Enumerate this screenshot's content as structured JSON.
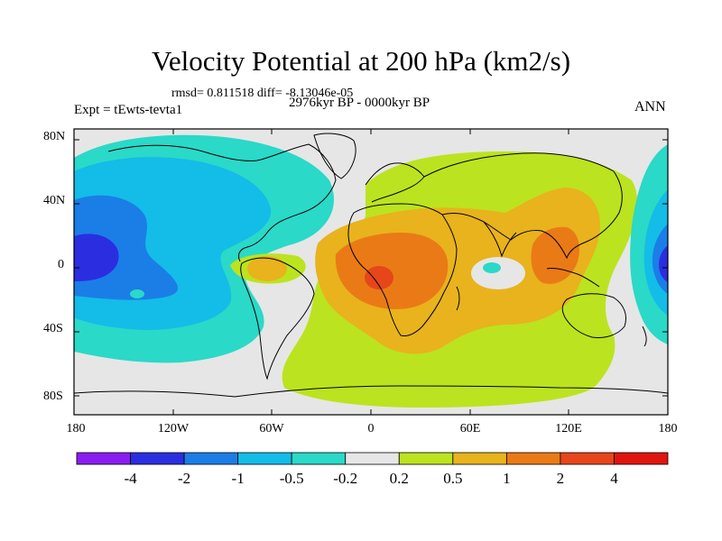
{
  "title": "Velocity Potential at 200 hPa (km2/s)",
  "stats_line": "rmsd= 0.811518 diff= -8.13046e-05",
  "period": "2976kyr BP - 0000kyr BP",
  "experiment": "Expt = tEwts-tevta1",
  "season": "ANN",
  "axes": {
    "y_ticks": [
      "80N",
      "40N",
      "0",
      "40S",
      "80S"
    ],
    "y_tick_values": [
      80,
      40,
      0,
      -40,
      -80
    ],
    "x_ticks": [
      "180",
      "120W",
      "60W",
      "0",
      "60E",
      "120E",
      "180"
    ],
    "x_tick_values": [
      -180,
      -120,
      -60,
      0,
      60,
      120,
      180
    ],
    "lon_range": [
      -180,
      180
    ],
    "lat_range": [
      -90,
      90
    ]
  },
  "colorbar": {
    "labels": [
      "-4",
      "-2",
      "-1",
      "-0.5",
      "-0.2",
      "0.2",
      "0.5",
      "1",
      "2",
      "4"
    ],
    "colors": [
      "#8a1cf0",
      "#2a2ee0",
      "#1a7ee6",
      "#14bce8",
      "#2ad9c8",
      "#e6e6e6",
      "#bce31f",
      "#e8b31c",
      "#ea7a16",
      "#e6461a",
      "#e0150f"
    ]
  },
  "field_colors": {
    "background": "#e6e6e6",
    "cyan": "#2ad9c8",
    "lightblue": "#14bce8",
    "blue": "#1a7ee6",
    "darkblue": "#2a2ee0",
    "lime": "#bce31f",
    "gold": "#e8b31c",
    "orange": "#ea7a16",
    "redorange": "#e6461a"
  }
}
